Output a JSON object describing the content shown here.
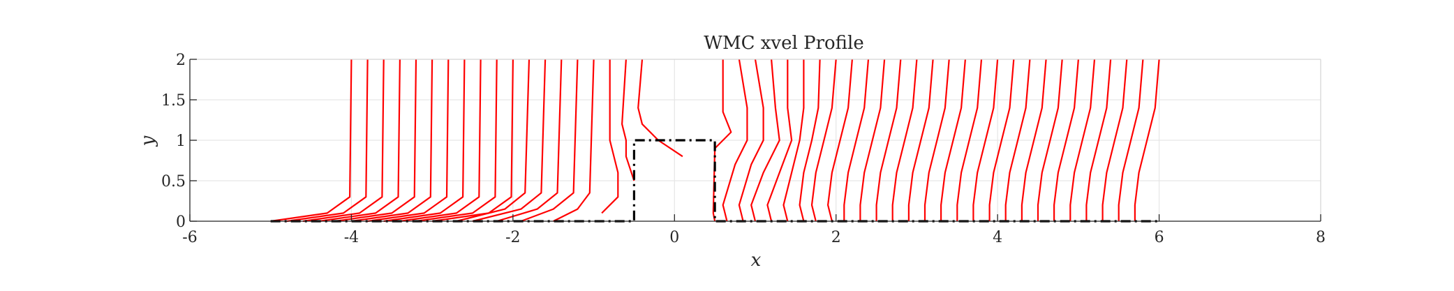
{
  "chart_data": {
    "type": "line",
    "title": "WMC xvel Profile",
    "xlabel": "x",
    "ylabel": "y",
    "xlim": [
      -6,
      8
    ],
    "ylim": [
      0,
      2
    ],
    "xticks": [
      "-6",
      "-4",
      "-2",
      "0",
      "2",
      "4",
      "6",
      "8"
    ],
    "yticks": [
      "0",
      "0.5",
      "1",
      "1.5",
      "2"
    ],
    "grid": true,
    "colors": {
      "profiles": "#ff0000",
      "geometry": "#000000",
      "grid": "#e6e6e6",
      "axes": "#262626"
    },
    "geometry_outline": {
      "style": "dash-dot",
      "x": [
        -5.0,
        -0.5,
        -0.5,
        0.5,
        0.5,
        6.0
      ],
      "y": [
        0,
        0,
        1,
        1,
        0,
        0
      ]
    },
    "velocity_profiles": {
      "stations_x": [
        -4.0,
        -3.8,
        -3.6,
        -3.4,
        -3.2,
        -3.0,
        -2.8,
        -2.6,
        -2.4,
        -2.2,
        -2.0,
        -1.8,
        -1.6,
        -1.4,
        -1.2,
        -1.0,
        -0.8,
        -0.6,
        -0.4,
        0.6,
        0.8,
        1.0,
        1.2,
        1.4,
        1.6,
        1.8,
        2.0,
        2.2,
        2.4,
        2.6,
        2.8,
        3.0,
        3.2,
        3.4,
        3.6,
        3.8,
        4.0,
        4.2,
        4.4,
        4.6,
        4.8,
        5.0,
        5.2,
        5.4,
        5.6,
        5.8,
        6.0
      ],
      "series": [
        {
          "y": [
            0,
            0.1,
            0.3,
            2.0
          ],
          "dx": [
            -1.0,
            -0.3,
            -0.02,
            0
          ]
        },
        {
          "y": [
            0,
            0.1,
            0.3,
            2.0
          ],
          "dx": [
            -1.0,
            -0.3,
            -0.02,
            0
          ]
        },
        {
          "y": [
            0,
            0.1,
            0.3,
            2.0
          ],
          "dx": [
            -1.0,
            -0.3,
            -0.02,
            0
          ]
        },
        {
          "y": [
            0,
            0.1,
            0.3,
            2.0
          ],
          "dx": [
            -1.0,
            -0.3,
            -0.02,
            0
          ]
        },
        {
          "y": [
            0,
            0.1,
            0.3,
            2.0
          ],
          "dx": [
            -1.0,
            -0.3,
            -0.02,
            0
          ]
        },
        {
          "y": [
            0,
            0.1,
            0.3,
            2.0
          ],
          "dx": [
            -1.0,
            -0.3,
            -0.02,
            0
          ]
        },
        {
          "y": [
            0,
            0.1,
            0.3,
            2.0
          ],
          "dx": [
            -1.0,
            -0.3,
            -0.02,
            0
          ]
        },
        {
          "y": [
            0,
            0.1,
            0.3,
            2.0
          ],
          "dx": [
            -1.0,
            -0.3,
            -0.02,
            0
          ]
        },
        {
          "y": [
            0,
            0.1,
            0.3,
            2.0
          ],
          "dx": [
            -1.0,
            -0.3,
            -0.02,
            0
          ]
        },
        {
          "y": [
            0,
            0.1,
            0.3,
            2.0
          ],
          "dx": [
            -1.0,
            -0.3,
            -0.02,
            0
          ]
        },
        {
          "y": [
            0,
            0.1,
            0.3,
            2.0
          ],
          "dx": [
            -1.0,
            -0.3,
            -0.02,
            0
          ]
        },
        {
          "y": [
            0,
            0.15,
            0.35,
            2.0
          ],
          "dx": [
            -0.9,
            -0.3,
            -0.05,
            0
          ]
        },
        {
          "y": [
            0,
            0.15,
            0.35,
            2.0
          ],
          "dx": [
            -0.9,
            -0.3,
            -0.05,
            0
          ]
        },
        {
          "y": [
            0,
            0.15,
            0.35,
            2.0
          ],
          "dx": [
            -0.8,
            -0.3,
            -0.05,
            0
          ]
        },
        {
          "y": [
            0,
            0.15,
            0.35,
            2.0
          ],
          "dx": [
            -0.7,
            -0.3,
            -0.05,
            0
          ]
        },
        {
          "y": [
            0,
            0.15,
            0.35,
            2.0
          ],
          "dx": [
            -0.5,
            -0.2,
            -0.05,
            0
          ]
        },
        {
          "y": [
            0.1,
            0.3,
            0.6,
            1.0,
            1.3,
            2.0
          ],
          "dx": [
            -0.1,
            0.1,
            0.1,
            0.0,
            0.0,
            0
          ]
        },
        {
          "y": [
            0.5,
            0.8,
            1.0,
            1.2,
            2.0
          ],
          "dx": [
            0.1,
            0.0,
            0.0,
            -0.05,
            0
          ]
        },
        {
          "y": [
            0.8,
            1.0,
            1.2,
            1.4,
            2.0
          ],
          "dx": [
            0.5,
            0.2,
            0.0,
            -0.05,
            0
          ]
        },
        {
          "y": [
            0,
            0.1,
            0.9,
            1.1,
            1.35,
            2.0
          ],
          "dx": [
            -0.1,
            -0.12,
            -0.1,
            0.1,
            0.0,
            0
          ]
        },
        {
          "y": [
            0,
            0.2,
            0.7,
            1.0,
            1.4,
            2.0
          ],
          "dx": [
            -0.15,
            -0.2,
            -0.05,
            0.1,
            0.1,
            0
          ]
        },
        {
          "y": [
            0,
            0.2,
            0.7,
            1.0,
            1.4,
            2.0
          ],
          "dx": [
            -0.15,
            -0.2,
            -0.05,
            0.1,
            0.1,
            0
          ]
        },
        {
          "y": [
            0,
            0.2,
            0.6,
            1.0,
            1.4,
            2.0
          ],
          "dx": [
            -0.2,
            -0.25,
            -0.1,
            0.1,
            0.05,
            0
          ]
        },
        {
          "y": [
            0,
            0.2,
            0.6,
            1.0,
            1.4,
            2.0
          ],
          "dx": [
            -0.2,
            -0.25,
            -0.1,
            0.05,
            0.0,
            0
          ]
        },
        {
          "y": [
            0,
            0.2,
            0.6,
            1.0,
            1.4,
            2.0
          ],
          "dx": [
            -0.2,
            -0.25,
            -0.15,
            -0.05,
            0.0,
            0
          ]
        },
        {
          "y": [
            0,
            0.2,
            0.6,
            1.0,
            1.4,
            2.0
          ],
          "dx": [
            -0.2,
            -0.25,
            -0.2,
            -0.1,
            -0.02,
            0
          ]
        },
        {
          "y": [
            0,
            0.2,
            0.6,
            1.0,
            1.4,
            2.0
          ],
          "dx": [
            -0.25,
            -0.3,
            -0.25,
            -0.15,
            -0.05,
            0
          ]
        },
        {
          "y": [
            0,
            0.2,
            0.6,
            1.0,
            1.4,
            2.0
          ],
          "dx": [
            -0.25,
            -0.3,
            -0.25,
            -0.15,
            -0.05,
            0
          ]
        },
        {
          "y": [
            0,
            0.2,
            0.6,
            1.0,
            1.4,
            2.0
          ],
          "dx": [
            -0.3,
            -0.3,
            -0.25,
            -0.15,
            -0.05,
            0
          ]
        },
        {
          "y": [
            0,
            0.2,
            0.6,
            1.0,
            1.4,
            2.0
          ],
          "dx": [
            -0.3,
            -0.3,
            -0.25,
            -0.15,
            -0.05,
            0
          ]
        },
        {
          "y": [
            0,
            0.2,
            0.6,
            1.0,
            1.4,
            2.0
          ],
          "dx": [
            -0.3,
            -0.3,
            -0.25,
            -0.15,
            -0.05,
            0
          ]
        },
        {
          "y": [
            0,
            0.2,
            0.6,
            1.0,
            1.4,
            2.0
          ],
          "dx": [
            -0.3,
            -0.3,
            -0.25,
            -0.15,
            -0.05,
            0
          ]
        },
        {
          "y": [
            0,
            0.2,
            0.6,
            1.0,
            1.4,
            2.0
          ],
          "dx": [
            -0.3,
            -0.3,
            -0.25,
            -0.15,
            -0.05,
            0
          ]
        },
        {
          "y": [
            0,
            0.2,
            0.6,
            1.0,
            1.4,
            2.0
          ],
          "dx": [
            -0.3,
            -0.3,
            -0.25,
            -0.15,
            -0.05,
            0
          ]
        },
        {
          "y": [
            0,
            0.2,
            0.6,
            1.0,
            1.4,
            2.0
          ],
          "dx": [
            -0.3,
            -0.3,
            -0.25,
            -0.15,
            -0.05,
            0
          ]
        },
        {
          "y": [
            0,
            0.2,
            0.6,
            1.0,
            1.4,
            2.0
          ],
          "dx": [
            -0.3,
            -0.3,
            -0.25,
            -0.15,
            -0.05,
            0
          ]
        },
        {
          "y": [
            0,
            0.2,
            0.6,
            1.0,
            1.4,
            2.0
          ],
          "dx": [
            -0.3,
            -0.3,
            -0.25,
            -0.15,
            -0.05,
            0
          ]
        },
        {
          "y": [
            0,
            0.2,
            0.6,
            1.0,
            1.4,
            2.0
          ],
          "dx": [
            -0.3,
            -0.3,
            -0.25,
            -0.15,
            -0.05,
            0
          ]
        },
        {
          "y": [
            0,
            0.2,
            0.6,
            1.0,
            1.4,
            2.0
          ],
          "dx": [
            -0.3,
            -0.3,
            -0.25,
            -0.15,
            -0.05,
            0
          ]
        },
        {
          "y": [
            0,
            0.2,
            0.6,
            1.0,
            1.4,
            2.0
          ],
          "dx": [
            -0.3,
            -0.3,
            -0.25,
            -0.15,
            -0.05,
            0
          ]
        },
        {
          "y": [
            0,
            0.2,
            0.6,
            1.0,
            1.4,
            2.0
          ],
          "dx": [
            -0.3,
            -0.3,
            -0.25,
            -0.15,
            -0.05,
            0
          ]
        },
        {
          "y": [
            0,
            0.2,
            0.6,
            1.0,
            1.4,
            2.0
          ],
          "dx": [
            -0.3,
            -0.3,
            -0.25,
            -0.15,
            -0.05,
            0
          ]
        },
        {
          "y": [
            0,
            0.2,
            0.6,
            1.0,
            1.4,
            2.0
          ],
          "dx": [
            -0.3,
            -0.3,
            -0.25,
            -0.15,
            -0.05,
            0
          ]
        },
        {
          "y": [
            0,
            0.2,
            0.6,
            1.0,
            1.4,
            2.0
          ],
          "dx": [
            -0.3,
            -0.3,
            -0.25,
            -0.15,
            -0.05,
            0
          ]
        },
        {
          "y": [
            0,
            0.2,
            0.6,
            1.0,
            1.4,
            2.0
          ],
          "dx": [
            -0.3,
            -0.3,
            -0.25,
            -0.15,
            -0.05,
            0
          ]
        },
        {
          "y": [
            0,
            0.2,
            0.6,
            1.0,
            1.4,
            2.0
          ],
          "dx": [
            -0.3,
            -0.3,
            -0.25,
            -0.15,
            -0.05,
            0
          ]
        },
        {
          "y": [
            0,
            0.2,
            0.6,
            1.0,
            1.4,
            2.0
          ],
          "dx": [
            -0.3,
            -0.3,
            -0.25,
            -0.15,
            -0.05,
            0
          ]
        }
      ]
    }
  }
}
